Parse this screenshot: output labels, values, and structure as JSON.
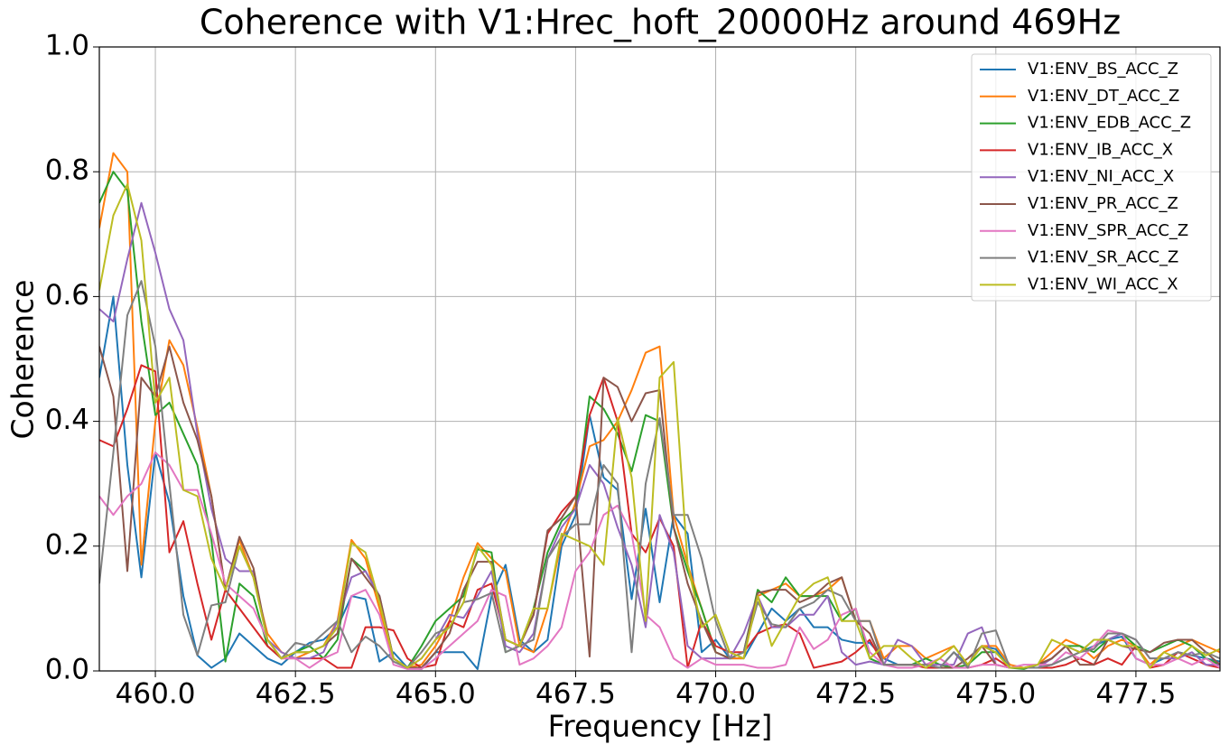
{
  "chart_data": {
    "type": "line",
    "title": "Coherence with V1:Hrec_hoft_20000Hz around 469Hz",
    "xlabel": "Frequency [Hz]",
    "ylabel": "Coherence",
    "x": [
      459,
      459.25,
      459.5,
      459.75,
      460,
      460.25,
      460.5,
      460.75,
      461,
      461.25,
      461.5,
      461.75,
      462,
      462.25,
      462.5,
      462.75,
      463,
      463.25,
      463.5,
      463.75,
      464,
      464.25,
      464.5,
      464.75,
      465,
      465.25,
      465.5,
      465.75,
      466,
      466.25,
      466.5,
      466.75,
      467,
      467.25,
      467.5,
      467.75,
      468,
      468.25,
      468.5,
      468.75,
      469,
      469.25,
      469.5,
      469.75,
      470,
      470.25,
      470.5,
      470.75,
      471,
      471.25,
      471.5,
      471.75,
      472,
      472.25,
      472.5,
      472.75,
      473,
      473.25,
      473.5,
      473.75,
      474,
      474.25,
      474.5,
      474.75,
      475,
      475.25,
      475.5,
      475.75,
      476,
      476.25,
      476.5,
      476.75,
      477,
      477.25,
      477.5,
      477.75,
      478,
      478.25,
      478.5,
      478.75,
      479
    ],
    "series": [
      {
        "name": "V1:ENV_BS_ACC_Z",
        "color": "#1f77b4",
        "values": [
          0.47,
          0.6,
          0.33,
          0.15,
          0.35,
          0.27,
          0.12,
          0.025,
          0.005,
          0.02,
          0.06,
          0.04,
          0.02,
          0.01,
          0.03,
          0.045,
          0.05,
          0.07,
          0.12,
          0.115,
          0.015,
          0.03,
          0.005,
          0.003,
          0.03,
          0.03,
          0.03,
          0.003,
          0.12,
          0.17,
          0.05,
          0.03,
          0.05,
          0.2,
          0.25,
          0.41,
          0.31,
          0.29,
          0.115,
          0.26,
          0.11,
          0.25,
          0.22,
          0.03,
          0.05,
          0.02,
          0.02,
          0.06,
          0.1,
          0.08,
          0.1,
          0.07,
          0.07,
          0.05,
          0.045,
          0.045,
          0.02,
          0.01,
          0.01,
          0.01,
          0.005,
          0.03,
          0.01,
          0.04,
          0.035,
          0.005,
          0.005,
          0.005,
          0.01,
          0.02,
          0.03,
          0.04,
          0.05,
          0.055,
          0.02,
          0.01,
          0.02,
          0.03,
          0.025,
          0.02,
          0.015
        ]
      },
      {
        "name": "V1:ENV_DT_ACC_Z",
        "color": "#ff7f0e",
        "values": [
          0.71,
          0.83,
          0.8,
          0.17,
          0.4,
          0.53,
          0.49,
          0.39,
          0.28,
          0.13,
          0.21,
          0.15,
          0.06,
          0.03,
          0.02,
          0.03,
          0.04,
          0.08,
          0.21,
          0.18,
          0.1,
          0.02,
          0.005,
          0.01,
          0.04,
          0.08,
          0.15,
          0.205,
          0.18,
          0.16,
          0.04,
          0.03,
          0.1,
          0.21,
          0.27,
          0.36,
          0.37,
          0.4,
          0.45,
          0.51,
          0.52,
          0.25,
          0.17,
          0.1,
          0.03,
          0.02,
          0.02,
          0.12,
          0.13,
          0.14,
          0.12,
          0.12,
          0.13,
          0.15,
          0.08,
          0.08,
          0.02,
          0.04,
          0.04,
          0.02,
          0.03,
          0.04,
          0.01,
          0.04,
          0.04,
          0.01,
          0.005,
          0.01,
          0.03,
          0.05,
          0.04,
          0.02,
          0.04,
          0.05,
          0.04,
          0.01,
          0.03,
          0.04,
          0.05,
          0.04,
          0.03
        ]
      },
      {
        "name": "V1:ENV_EDB_ACC_Z",
        "color": "#2ca02c",
        "values": [
          0.75,
          0.8,
          0.77,
          0.56,
          0.41,
          0.43,
          0.38,
          0.33,
          0.21,
          0.015,
          0.14,
          0.12,
          0.04,
          0.02,
          0.03,
          0.04,
          0.02,
          0.05,
          0.18,
          0.16,
          0.12,
          0.02,
          0.005,
          0.04,
          0.08,
          0.1,
          0.12,
          0.195,
          0.19,
          0.03,
          0.04,
          0.1,
          0.19,
          0.24,
          0.26,
          0.44,
          0.42,
          0.38,
          0.32,
          0.41,
          0.4,
          0.23,
          0.16,
          0.1,
          0.03,
          0.02,
          0.03,
          0.13,
          0.11,
          0.15,
          0.12,
          0.12,
          0.12,
          0.08,
          0.1,
          0.02,
          0.01,
          0.01,
          0.01,
          0.02,
          0.01,
          0.005,
          0.01,
          0.03,
          0.03,
          0.005,
          0.003,
          0.01,
          0.02,
          0.04,
          0.04,
          0.03,
          0.05,
          0.06,
          0.04,
          0.03,
          0.04,
          0.05,
          0.04,
          0.02,
          0.01
        ]
      },
      {
        "name": "V1:ENV_IB_ACC_X",
        "color": "#d62728",
        "values": [
          0.37,
          0.36,
          0.42,
          0.49,
          0.48,
          0.19,
          0.24,
          0.14,
          0.05,
          0.13,
          0.1,
          0.07,
          0.04,
          0.02,
          0.02,
          0.02,
          0.02,
          0.005,
          0.005,
          0.07,
          0.07,
          0.065,
          0.02,
          0.005,
          0.01,
          0.08,
          0.07,
          0.13,
          0.14,
          0.05,
          0.04,
          0.09,
          0.22,
          0.255,
          0.28,
          0.41,
          0.47,
          0.4,
          0.22,
          0.19,
          0.245,
          0.2,
          0.005,
          0.08,
          0.04,
          0.03,
          0.03,
          0.06,
          0.07,
          0.075,
          0.06,
          0.005,
          0.01,
          0.015,
          0.03,
          0.05,
          0.01,
          0.01,
          0.01,
          0.005,
          0.005,
          0.005,
          0.005,
          0.01,
          0.02,
          0.005,
          0.005,
          0.005,
          0.005,
          0.01,
          0.02,
          0.01,
          0.02,
          0.01,
          0.04,
          0.005,
          0.01,
          0.03,
          0.02,
          0.01,
          0.005
        ]
      },
      {
        "name": "V1:ENV_NI_ACC_X",
        "color": "#9467bd",
        "values": [
          0.58,
          0.56,
          0.66,
          0.75,
          0.67,
          0.58,
          0.53,
          0.38,
          0.26,
          0.18,
          0.16,
          0.16,
          0.05,
          0.03,
          0.02,
          0.02,
          0.03,
          0.08,
          0.15,
          0.16,
          0.12,
          0.02,
          0.005,
          0.02,
          0.05,
          0.09,
          0.085,
          0.12,
          0.16,
          0.04,
          0.03,
          0.06,
          0.18,
          0.23,
          0.26,
          0.33,
          0.3,
          0.23,
          0.17,
          0.07,
          0.25,
          0.19,
          0.04,
          0.02,
          0.02,
          0.02,
          0.06,
          0.12,
          0.07,
          0.07,
          0.09,
          0.09,
          0.12,
          0.03,
          0.01,
          0.015,
          0.01,
          0.05,
          0.04,
          0.01,
          0.01,
          0.01,
          0.06,
          0.07,
          0.01,
          0.005,
          0.005,
          0.005,
          0.02,
          0.04,
          0.03,
          0.05,
          0.05,
          0.06,
          0.05,
          0.02,
          0.02,
          0.02,
          0.03,
          0.01,
          0.01
        ]
      },
      {
        "name": "V1:ENV_PR_ACC_Z",
        "color": "#8c564b",
        "values": [
          0.52,
          0.44,
          0.16,
          0.47,
          0.44,
          0.52,
          0.43,
          0.37,
          0.28,
          0.13,
          0.215,
          0.165,
          0.05,
          0.02,
          0.03,
          0.03,
          0.04,
          0.06,
          0.18,
          0.15,
          0.12,
          0.02,
          0.005,
          0.005,
          0.03,
          0.06,
          0.13,
          0.175,
          0.175,
          0.05,
          0.04,
          0.09,
          0.225,
          0.245,
          0.28,
          0.023,
          0.47,
          0.455,
          0.4,
          0.445,
          0.45,
          0.23,
          0.14,
          0.08,
          0.03,
          0.02,
          0.03,
          0.125,
          0.13,
          0.13,
          0.11,
          0.12,
          0.14,
          0.15,
          0.08,
          0.06,
          0.01,
          0.01,
          0.01,
          0.01,
          0.005,
          0.005,
          0.02,
          0.04,
          0.01,
          0.005,
          0.005,
          0.01,
          0.02,
          0.04,
          0.01,
          0.01,
          0.05,
          0.04,
          0.035,
          0.03,
          0.045,
          0.05,
          0.05,
          0.03,
          0.01
        ]
      },
      {
        "name": "V1:ENV_SPR_ACC_Z",
        "color": "#e377c2",
        "values": [
          0.28,
          0.25,
          0.28,
          0.3,
          0.35,
          0.33,
          0.29,
          0.29,
          0.22,
          0.14,
          0.12,
          0.1,
          0.05,
          0.02,
          0.02,
          0.005,
          0.02,
          0.03,
          0.12,
          0.13,
          0.09,
          0.01,
          0.003,
          0.003,
          0.02,
          0.04,
          0.06,
          0.08,
          0.13,
          0.12,
          0.01,
          0.02,
          0.04,
          0.07,
          0.16,
          0.19,
          0.25,
          0.265,
          0.22,
          0.09,
          0.07,
          0.02,
          0.005,
          0.02,
          0.01,
          0.01,
          0.01,
          0.005,
          0.005,
          0.01,
          0.07,
          0.035,
          0.05,
          0.09,
          0.1,
          0.03,
          0.01,
          0.005,
          0.005,
          0.01,
          0.02,
          0.005,
          0.005,
          0.01,
          0.01,
          0.005,
          0.01,
          0.01,
          0.01,
          0.03,
          0.02,
          0.04,
          0.065,
          0.06,
          0.02,
          0.01,
          0.01,
          0.02,
          0.01,
          0.02,
          0.005
        ]
      },
      {
        "name": "V1:ENV_SR_ACC_Z",
        "color": "#7f7f7f",
        "values": [
          0.14,
          0.35,
          0.57,
          0.625,
          0.52,
          0.3,
          0.09,
          0.025,
          0.105,
          0.11,
          0.2,
          0.15,
          0.05,
          0.02,
          0.045,
          0.04,
          0.06,
          0.08,
          0.03,
          0.055,
          0.04,
          0.015,
          0.005,
          0.03,
          0.06,
          0.07,
          0.11,
          0.115,
          0.125,
          0.03,
          0.04,
          0.05,
          0.18,
          0.215,
          0.235,
          0.235,
          0.33,
          0.3,
          0.03,
          0.3,
          0.405,
          0.25,
          0.25,
          0.18,
          0.08,
          0.02,
          0.03,
          0.11,
          0.075,
          0.07,
          0.1,
          0.11,
          0.13,
          0.12,
          0.08,
          0.08,
          0.01,
          0.01,
          0.01,
          0.01,
          0.005,
          0.03,
          0.005,
          0.06,
          0.065,
          0.005,
          0.005,
          0.005,
          0.01,
          0.02,
          0.03,
          0.035,
          0.06,
          0.06,
          0.05,
          0.02,
          0.02,
          0.03,
          0.025,
          0.03,
          0.02
        ]
      },
      {
        "name": "V1:ENV_WI_ACC_X",
        "color": "#bcbd22",
        "values": [
          0.61,
          0.73,
          0.78,
          0.69,
          0.43,
          0.47,
          0.29,
          0.28,
          0.18,
          0.13,
          0.2,
          0.15,
          0.05,
          0.02,
          0.03,
          0.03,
          0.04,
          0.07,
          0.205,
          0.19,
          0.11,
          0.02,
          0.005,
          0.02,
          0.05,
          0.07,
          0.11,
          0.2,
          0.17,
          0.05,
          0.04,
          0.1,
          0.1,
          0.22,
          0.21,
          0.2,
          0.17,
          0.405,
          0.31,
          0.08,
          0.47,
          0.495,
          0.17,
          0.07,
          0.09,
          0.03,
          0.02,
          0.12,
          0.04,
          0.08,
          0.12,
          0.14,
          0.15,
          0.08,
          0.08,
          0.02,
          0.04,
          0.04,
          0.02,
          0.005,
          0.02,
          0.04,
          0.01,
          0.04,
          0.03,
          0.005,
          0.005,
          0.01,
          0.05,
          0.04,
          0.03,
          0.05,
          0.05,
          0.04,
          0.04,
          0.005,
          0.03,
          0.02,
          0.04,
          0.025,
          0.035
        ]
      }
    ],
    "xlim": [
      459,
      479
    ],
    "ylim": [
      0,
      1
    ],
    "xticks": [
      {
        "value": 460,
        "label": "460.0"
      },
      462.5,
      {
        "value": 465,
        "label": "465.0"
      },
      467.5,
      {
        "value": 470,
        "label": "470.0"
      },
      472.5,
      {
        "value": 475,
        "label": "475.0"
      },
      477.5
    ],
    "yticks": [
      {
        "value": 0,
        "label": "0.0"
      },
      0.2,
      0.4,
      0.6,
      0.8,
      {
        "value": 1,
        "label": "1.0"
      }
    ],
    "grid": true,
    "legend": "upper right"
  }
}
